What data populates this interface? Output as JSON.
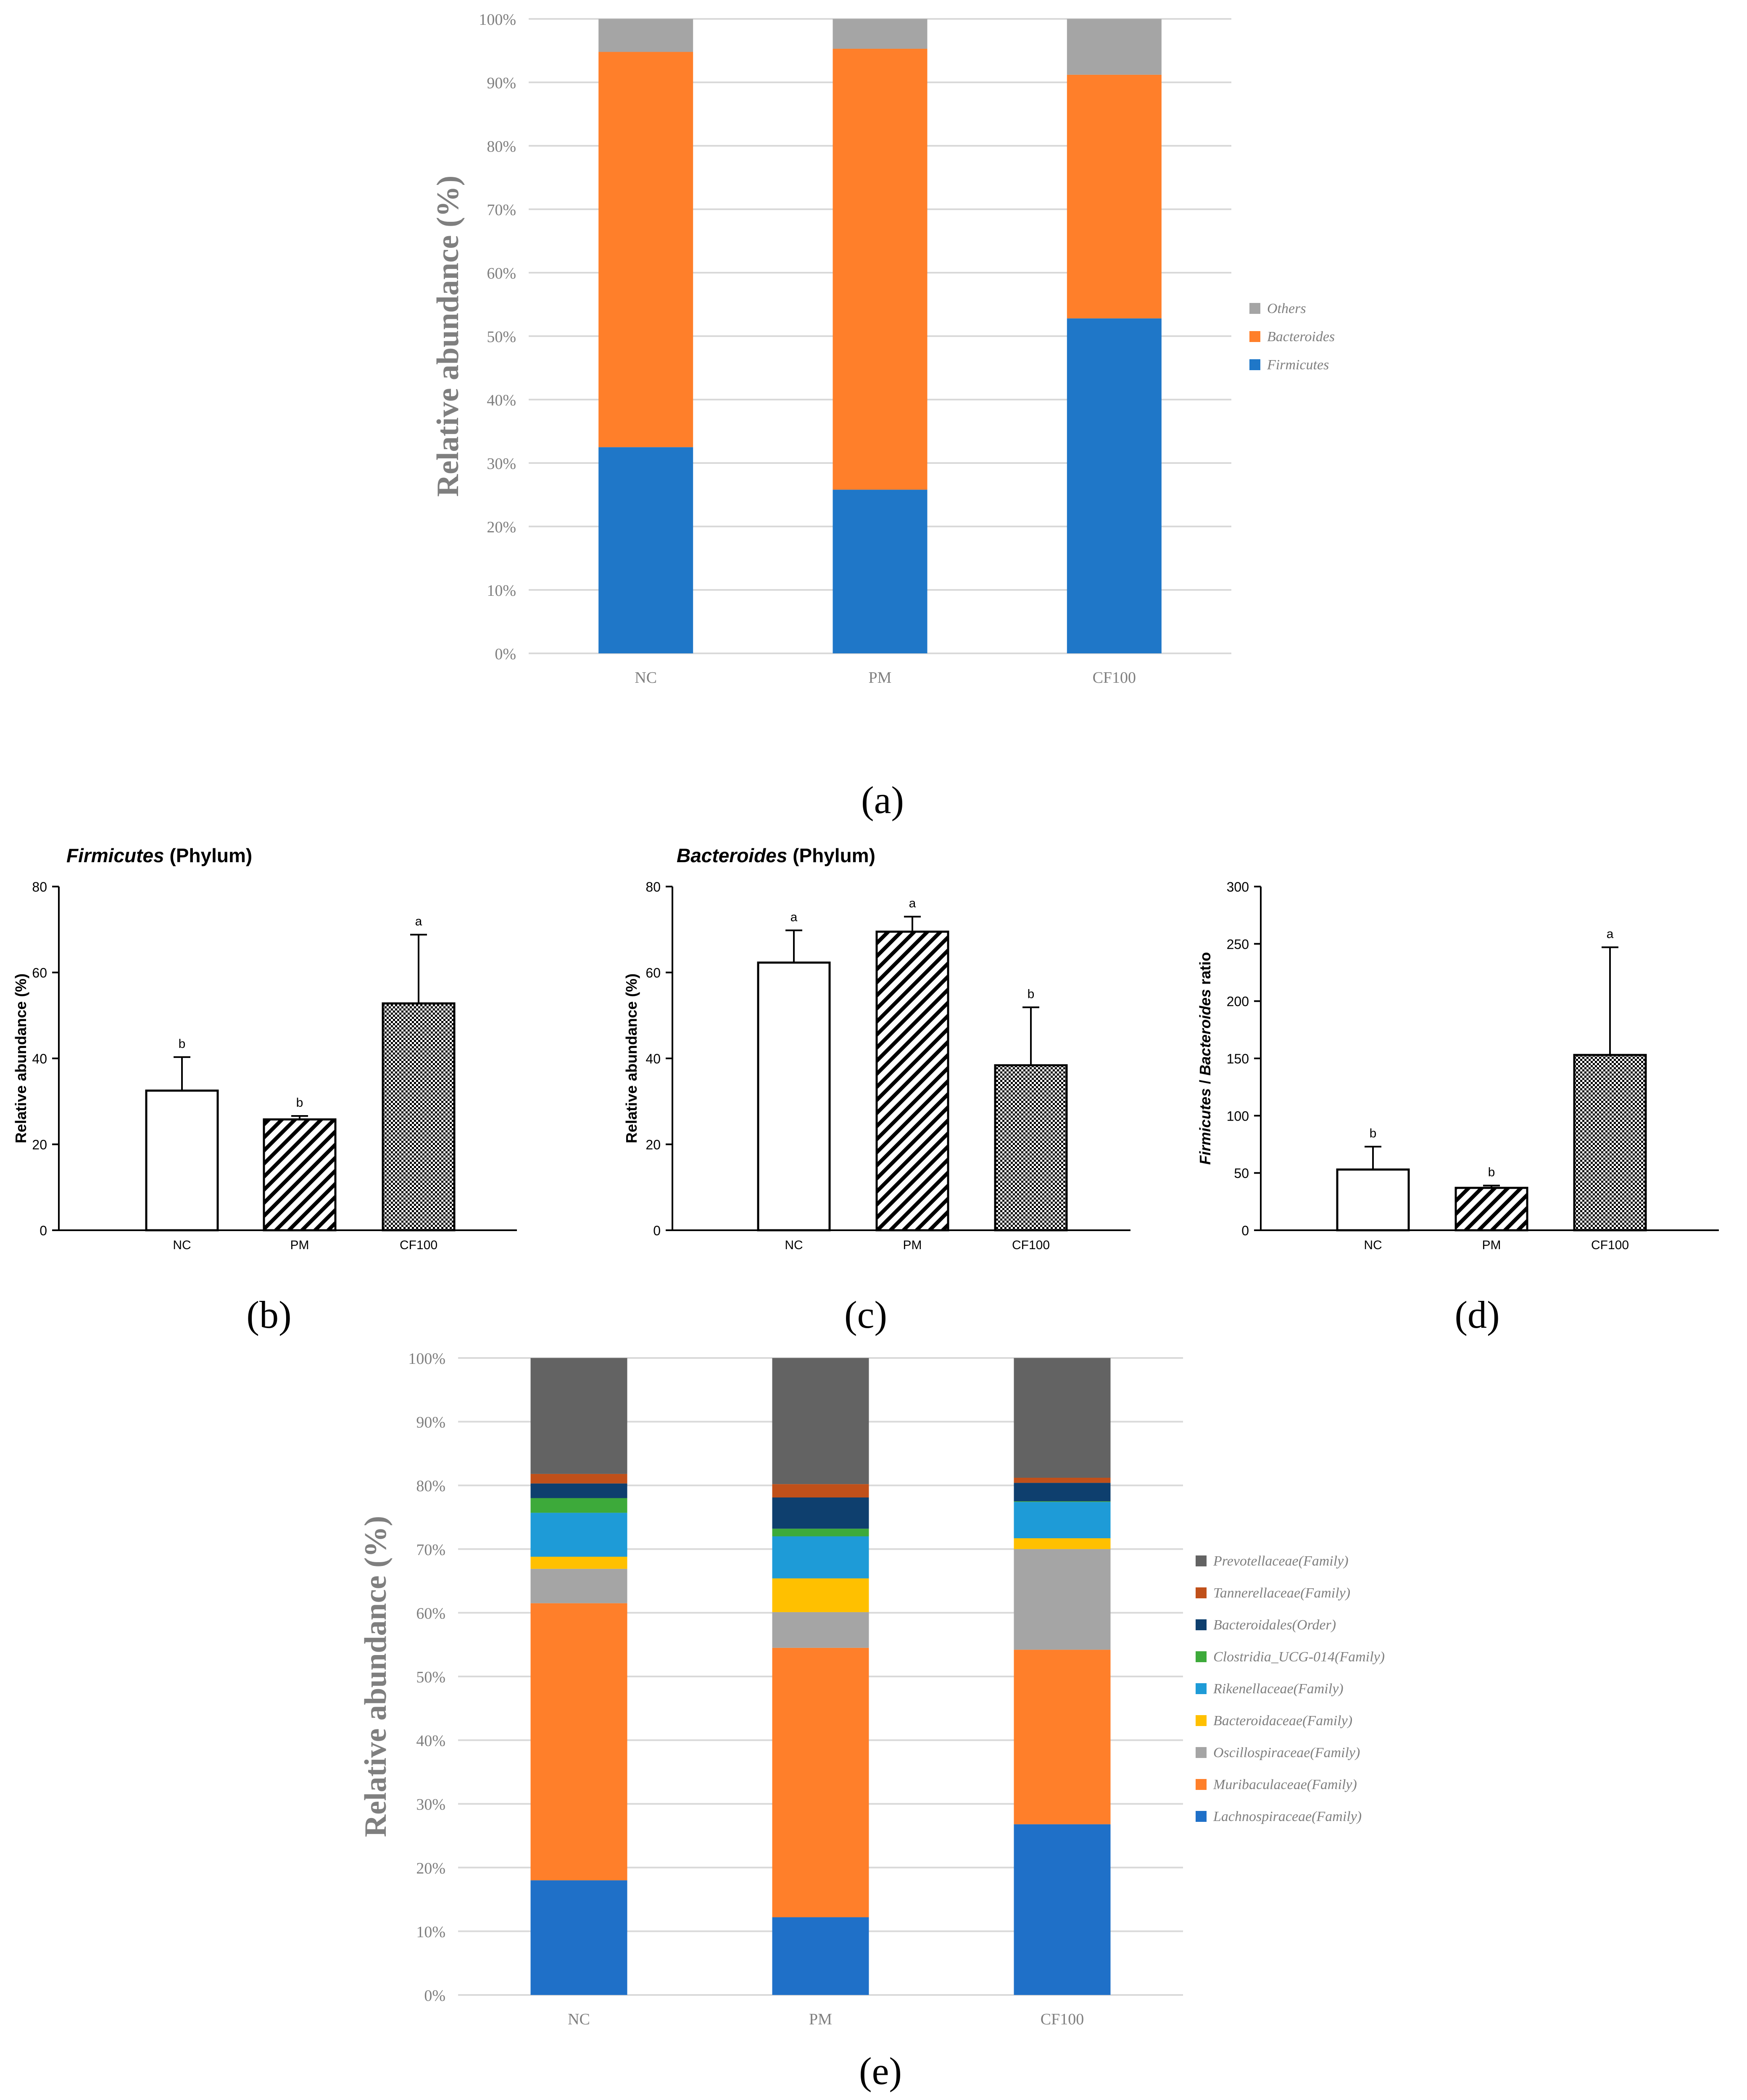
{
  "colors": {
    "firmicutes": "#1F77C8",
    "bacteroides": "#FF7F2A",
    "others": "#A5A5A5",
    "prevotellaceae": "#636363",
    "tannerellaceae": "#C0501A",
    "bacteroidales": "#0E3F6E",
    "clostridia": "#3DAA3A",
    "rikenellaceae": "#1E9BD7",
    "bacteroidaceae": "#FFC000",
    "oscillospiraceae": "#A5A5A5",
    "muribaculaceae": "#FF7F2A",
    "lachnospiraceae": "#1F70C8",
    "grid": "#D9D9D9",
    "axis_text": "#7F7F7F"
  },
  "panel_labels": {
    "a": "(a)",
    "b": "(b)",
    "c": "(c)",
    "d": "(d)",
    "e": "(e)"
  },
  "chart_data": [
    {
      "id": "a",
      "type": "bar",
      "stacked": true,
      "percent": true,
      "categories": [
        "NC",
        "PM",
        "CF100"
      ],
      "series": [
        {
          "name": "Firmicutes",
          "color_key": "firmicutes",
          "values": [
            32.5,
            25.8,
            52.8
          ]
        },
        {
          "name": "Bacteroides",
          "color_key": "bacteroides",
          "values": [
            62.3,
            69.5,
            38.4
          ]
        },
        {
          "name": "Others",
          "color_key": "others",
          "values": [
            5.2,
            4.7,
            8.8
          ]
        }
      ],
      "ylabel": "Relative abundance (%)",
      "yticks": [
        "0%",
        "10%",
        "20%",
        "30%",
        "40%",
        "50%",
        "60%",
        "70%",
        "80%",
        "90%",
        "100%"
      ],
      "ylim": [
        0,
        100
      ],
      "legend": [
        "Others",
        "Bacteroides",
        "Firmicutes"
      ],
      "legend_position": "right"
    },
    {
      "id": "b",
      "type": "bar",
      "title_italic": "Firmicutes",
      "title_rest": " (Phylum)",
      "categories": [
        "NC",
        "PM",
        "CF100"
      ],
      "values": [
        32.5,
        25.8,
        52.8
      ],
      "errors": [
        7.8,
        0.8,
        16.0
      ],
      "letters": [
        "b",
        "b",
        "a"
      ],
      "patterns": [
        "none",
        "hatch",
        "cross"
      ],
      "ylabel": "Relative abundance (%)",
      "yticks": [
        "0",
        "20",
        "40",
        "60",
        "80"
      ],
      "ylim": [
        0,
        80
      ]
    },
    {
      "id": "c",
      "type": "bar",
      "title_italic": "Bacteroides",
      "title_rest": " (Phylum)",
      "categories": [
        "NC",
        "PM",
        "CF100"
      ],
      "values": [
        62.3,
        69.5,
        38.4
      ],
      "errors": [
        7.5,
        3.5,
        13.5
      ],
      "letters": [
        "a",
        "a",
        "b"
      ],
      "patterns": [
        "none",
        "hatch",
        "cross"
      ],
      "ylabel": "Relative abundance (%)",
      "yticks": [
        "0",
        "20",
        "40",
        "60",
        "80"
      ],
      "ylim": [
        0,
        80
      ]
    },
    {
      "id": "d",
      "type": "bar",
      "categories": [
        "NC",
        "PM",
        "CF100"
      ],
      "values": [
        53,
        37,
        153
      ],
      "errors": [
        20,
        2,
        94
      ],
      "letters": [
        "b",
        "b",
        "a"
      ],
      "patterns": [
        "none",
        "hatch",
        "cross"
      ],
      "ylabel_italic1": "Firmicutes",
      "ylabel_mid": " / ",
      "ylabel_italic2": "Bacteroides",
      "ylabel_rest": " ratio",
      "yticks": [
        "0",
        "50",
        "100",
        "150",
        "200",
        "250",
        "300"
      ],
      "ylim": [
        0,
        300
      ]
    },
    {
      "id": "e",
      "type": "bar",
      "stacked": true,
      "percent": true,
      "categories": [
        "NC",
        "PM",
        "CF100"
      ],
      "series": [
        {
          "name": "Lachnospiraceae(Family)",
          "color_key": "lachnospiraceae",
          "values": [
            18,
            12.2,
            26.8
          ]
        },
        {
          "name": "Muribaculaceae(Family)",
          "color_key": "muribaculaceae",
          "values": [
            43.5,
            42.3,
            27.4
          ]
        },
        {
          "name": "Oscillospiraceae(Family)",
          "color_key": "oscillospiraceae",
          "values": [
            5.4,
            5.6,
            15.8
          ]
        },
        {
          "name": "Bacteroidaceae(Family)",
          "color_key": "bacteroidaceae",
          "values": [
            1.9,
            5.3,
            1.7
          ]
        },
        {
          "name": "Rikenellaceae(Family)",
          "color_key": "rikenellaceae",
          "values": [
            6.9,
            6.6,
            5.7
          ]
        },
        {
          "name": "Clostridia_UCG-014(Family)",
          "color_key": "clostridia",
          "values": [
            2.3,
            1.2,
            0.1
          ]
        },
        {
          "name": "Bacteroidales(Order)",
          "color_key": "bacteroidales",
          "values": [
            2.3,
            4.9,
            2.9
          ]
        },
        {
          "name": "Tannerellaceae(Family)",
          "color_key": "tannerellaceae",
          "values": [
            1.5,
            2.1,
            0.8
          ]
        },
        {
          "name": "Prevotellaceae(Family)",
          "color_key": "prevotellaceae",
          "values": [
            18.2,
            19.8,
            18.8
          ]
        }
      ],
      "ylabel": "Relative abundance (%)",
      "yticks": [
        "0%",
        "10%",
        "20%",
        "30%",
        "40%",
        "50%",
        "60%",
        "70%",
        "80%",
        "90%",
        "100%"
      ],
      "ylim": [
        0,
        100
      ],
      "legend": [
        "Prevotellaceae(Family)",
        "Tannerellaceae(Family)",
        "Bacteroidales(Order)",
        "Clostridia_UCG-014(Family)",
        "Rikenellaceae(Family)",
        "Bacteroidaceae(Family)",
        "Oscillospiraceae(Family)",
        "Muribaculaceae(Family)",
        "Lachnospiraceae(Family)"
      ],
      "legend_position": "right"
    }
  ]
}
